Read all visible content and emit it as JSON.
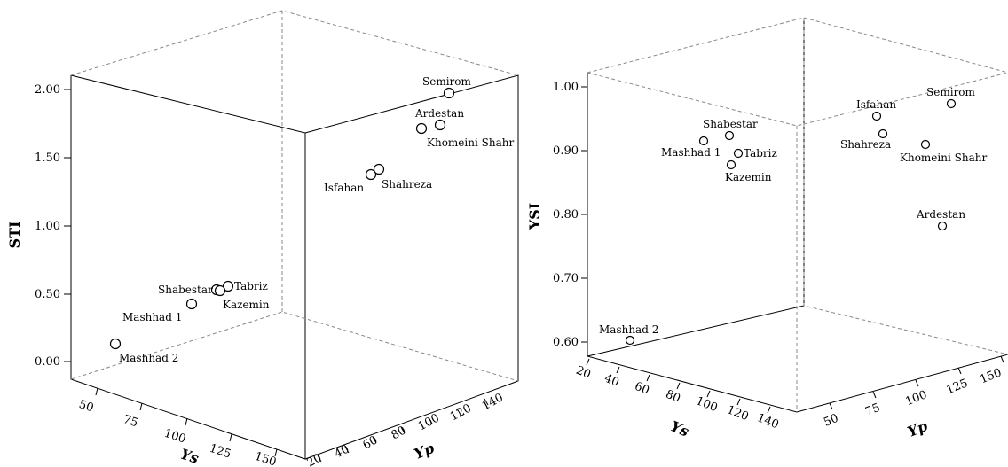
{
  "chart_data": [
    {
      "type": "scatter",
      "subtype": "3d",
      "xlabel": "Ys",
      "ylabel": "Yp",
      "zlabel": "STI",
      "xticks": [
        "50",
        "75",
        "100",
        "125",
        "150"
      ],
      "yticks": [
        "20",
        "40",
        "60",
        "80",
        "100",
        "120",
        "140"
      ],
      "zticks": [
        "0.00",
        "0.50",
        "1.00",
        "1.50",
        "2.00"
      ],
      "zlim": [
        0,
        2
      ],
      "points": [
        {
          "label": "Semirom",
          "z": 1.97
        },
        {
          "label": "Ardestan",
          "z": 1.74
        },
        {
          "label": "Khomeini Shahr",
          "z": 1.71
        },
        {
          "label": "Isfahan",
          "z": 1.37
        },
        {
          "label": "Shahreza",
          "z": 1.41
        },
        {
          "label": "Shabestar",
          "z": 0.52
        },
        {
          "label": "Tabriz",
          "z": 0.55
        },
        {
          "label": "Kazemin",
          "z": 0.52
        },
        {
          "label": "Mashhad 1",
          "z": 0.42
        },
        {
          "label": "Mashhad 2",
          "z": 0.13
        }
      ]
    },
    {
      "type": "scatter",
      "subtype": "3d",
      "xlabel": "Ys",
      "ylabel": "Yp",
      "zlabel": "YSI",
      "xticks": [
        "20",
        "40",
        "60",
        "80",
        "100",
        "120",
        "140"
      ],
      "yticks": [
        "50",
        "75",
        "100",
        "125",
        "150"
      ],
      "zticks": [
        "0.60",
        "0.70",
        "0.80",
        "0.90",
        "1.00"
      ],
      "zlim": [
        0.58,
        1.02
      ],
      "points": [
        {
          "label": "Semirom",
          "z": 0.97
        },
        {
          "label": "Isfahan",
          "z": 0.95
        },
        {
          "label": "Shahreza",
          "z": 0.93
        },
        {
          "label": "Khomeini Shahr",
          "z": 0.91
        },
        {
          "label": "Shabestar",
          "z": 0.92
        },
        {
          "label": "Mashhad 1",
          "z": 0.91
        },
        {
          "label": "Tabriz",
          "z": 0.9
        },
        {
          "label": "Kazemin",
          "z": 0.88
        },
        {
          "label": "Ardestan",
          "z": 0.78
        },
        {
          "label": "Mashhad 2",
          "z": 0.6
        }
      ]
    }
  ]
}
